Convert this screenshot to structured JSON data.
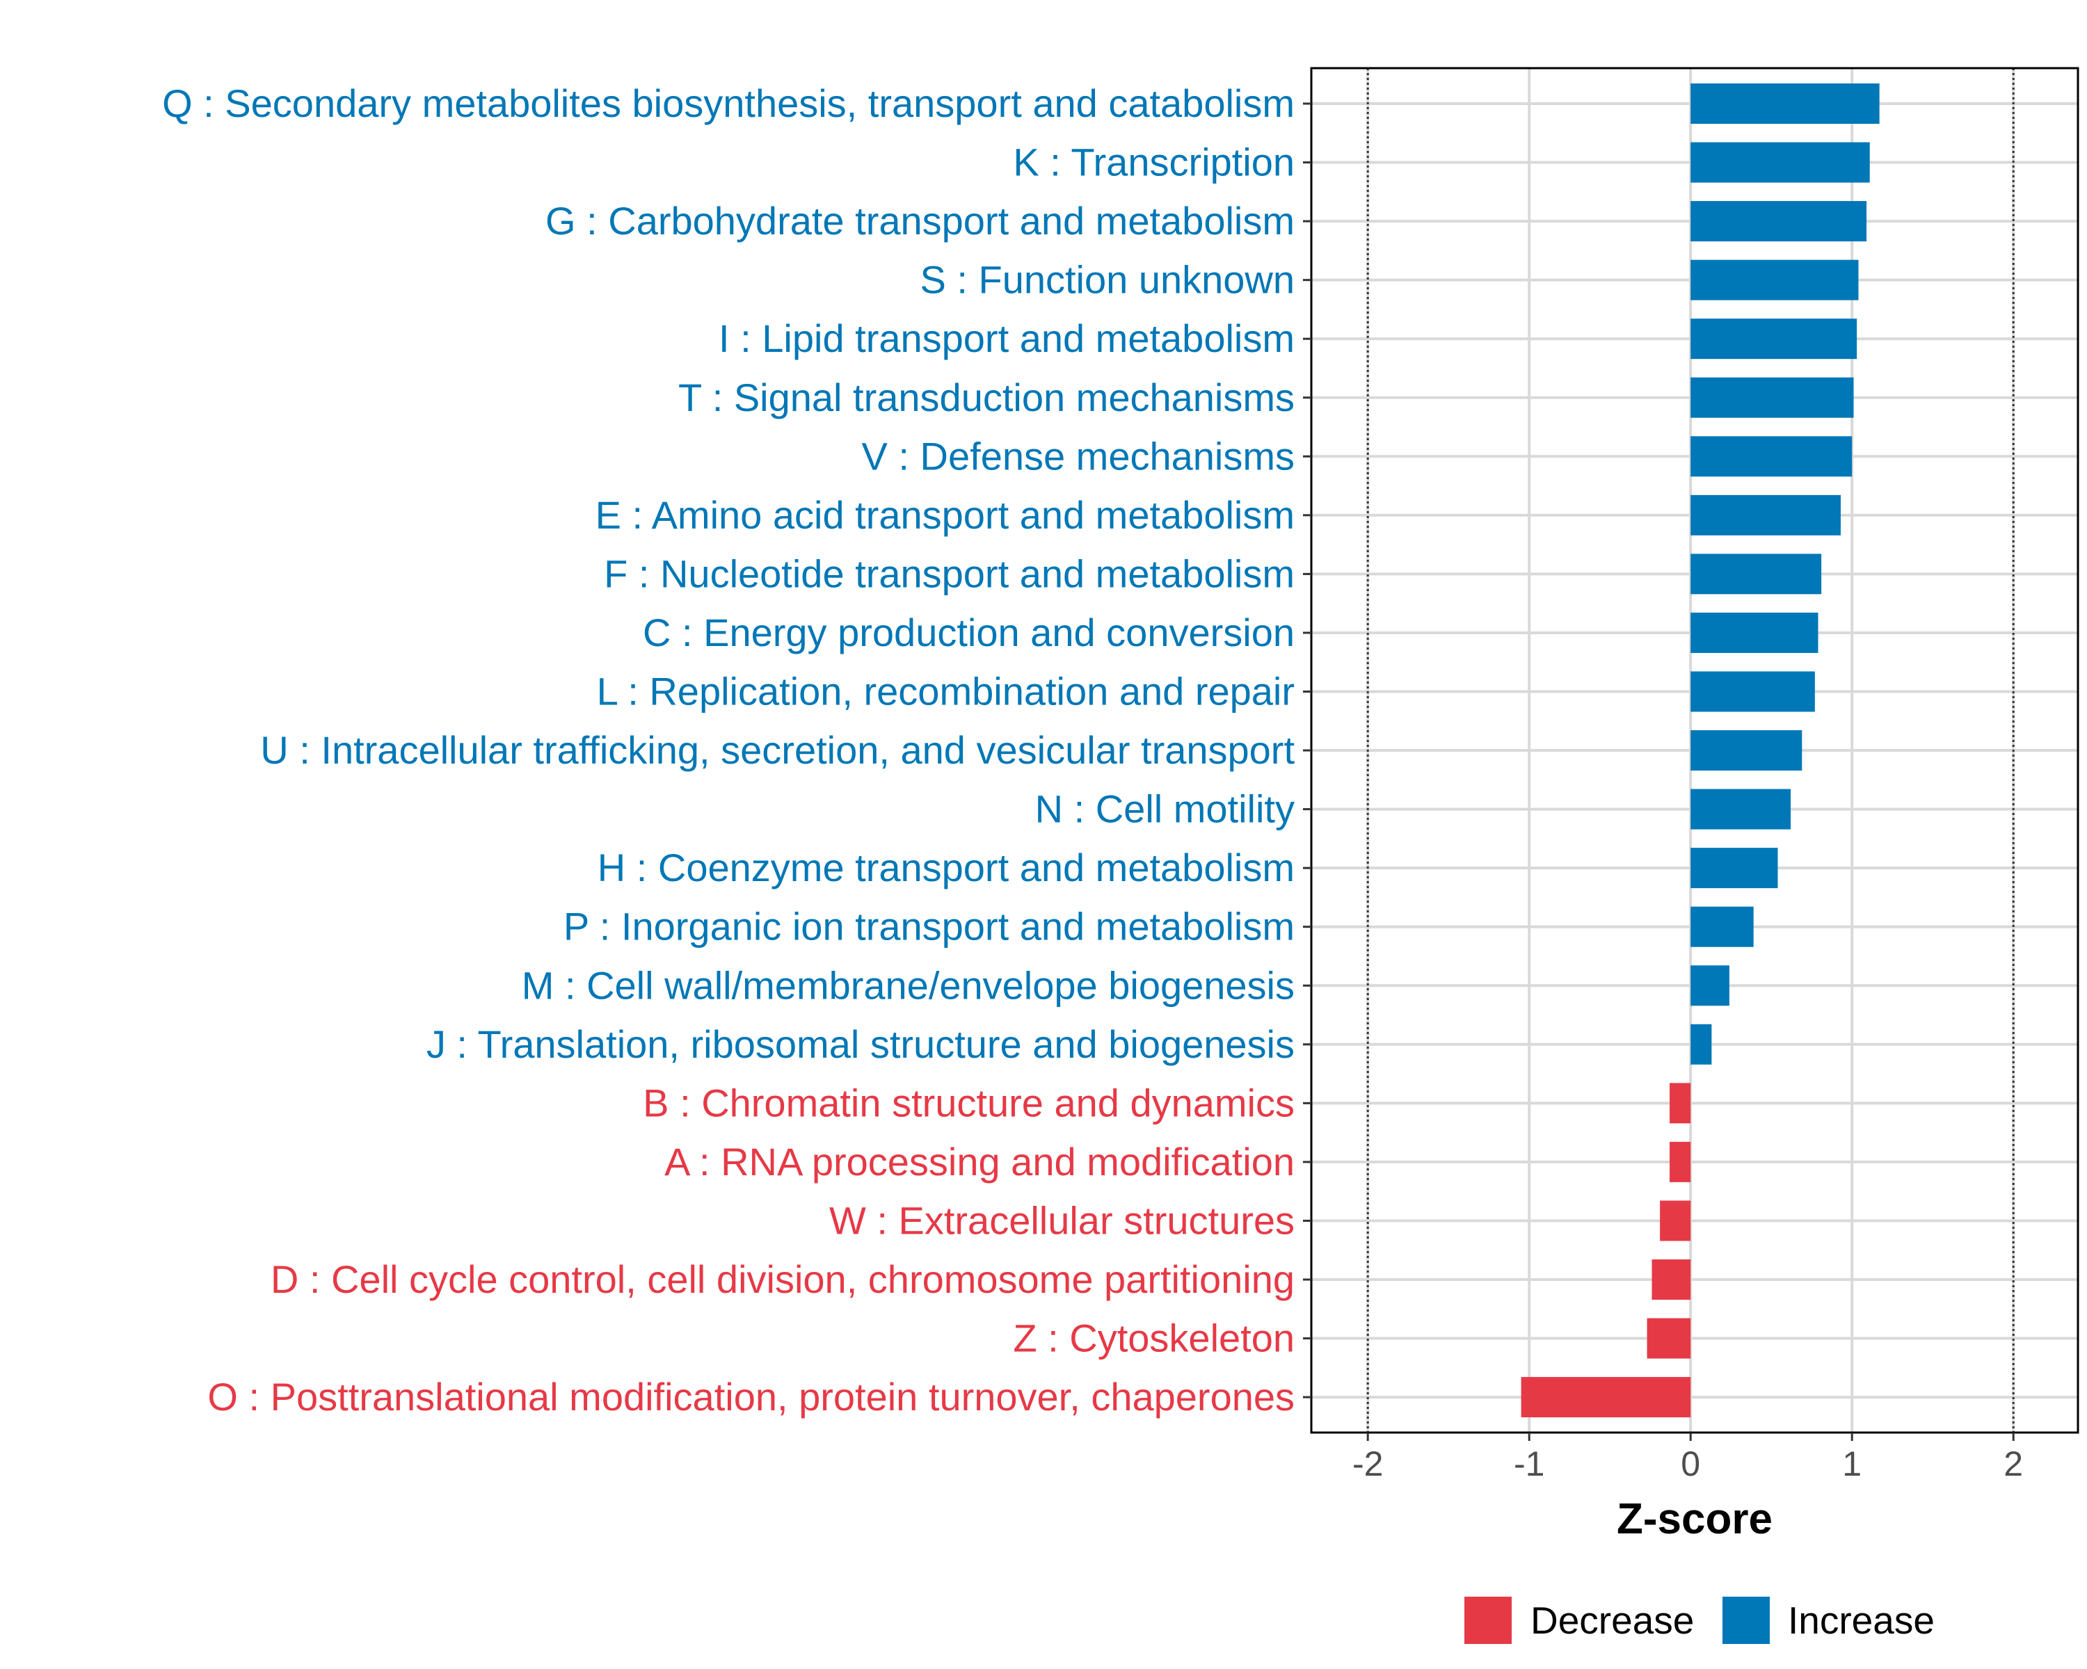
{
  "chart_data": {
    "type": "bar",
    "orientation": "horizontal",
    "title": "",
    "xlabel": "Z-score",
    "ylabel": "",
    "xlim": [
      -2.35,
      2.4
    ],
    "xticks": [
      -2,
      -1,
      0,
      1,
      2
    ],
    "xtick_labels": [
      "-2",
      "-1",
      "0",
      "1",
      "2"
    ],
    "reference_lines": [
      -2,
      2
    ],
    "grid": true,
    "legend_position": "bottom",
    "colors": {
      "Decrease": "#E63946",
      "Increase": "#0077B6"
    },
    "categories": [
      "Q : Secondary metabolites biosynthesis, transport and catabolism",
      "K : Transcription",
      "G : Carbohydrate transport and metabolism",
      "S : Function unknown",
      "I : Lipid transport and metabolism",
      "T : Signal transduction mechanisms",
      "V : Defense mechanisms",
      "E : Amino acid transport and metabolism",
      "F : Nucleotide transport and metabolism",
      "C : Energy production and conversion",
      "L : Replication, recombination and repair",
      "U : Intracellular trafficking, secretion, and vesicular transport",
      "N : Cell motility",
      "H : Coenzyme transport and metabolism",
      "P : Inorganic ion transport and metabolism",
      "M : Cell wall/membrane/envelope biogenesis",
      "J : Translation, ribosomal structure and biogenesis",
      "B : Chromatin structure and dynamics",
      "A : RNA processing and modification",
      "W : Extracellular structures",
      "D : Cell cycle control, cell division, chromosome partitioning",
      "Z : Cytoskeleton",
      "O : Posttranslational modification, protein turnover, chaperones"
    ],
    "values": [
      1.17,
      1.11,
      1.09,
      1.04,
      1.03,
      1.01,
      1.0,
      0.93,
      0.81,
      0.79,
      0.77,
      0.69,
      0.62,
      0.54,
      0.39,
      0.24,
      0.13,
      -0.13,
      -0.13,
      -0.19,
      -0.24,
      -0.27,
      -1.05
    ],
    "groups": [
      "Increase",
      "Increase",
      "Increase",
      "Increase",
      "Increase",
      "Increase",
      "Increase",
      "Increase",
      "Increase",
      "Increase",
      "Increase",
      "Increase",
      "Increase",
      "Increase",
      "Increase",
      "Increase",
      "Increase",
      "Decrease",
      "Decrease",
      "Decrease",
      "Decrease",
      "Decrease",
      "Decrease"
    ],
    "legend": [
      "Decrease",
      "Increase"
    ]
  }
}
